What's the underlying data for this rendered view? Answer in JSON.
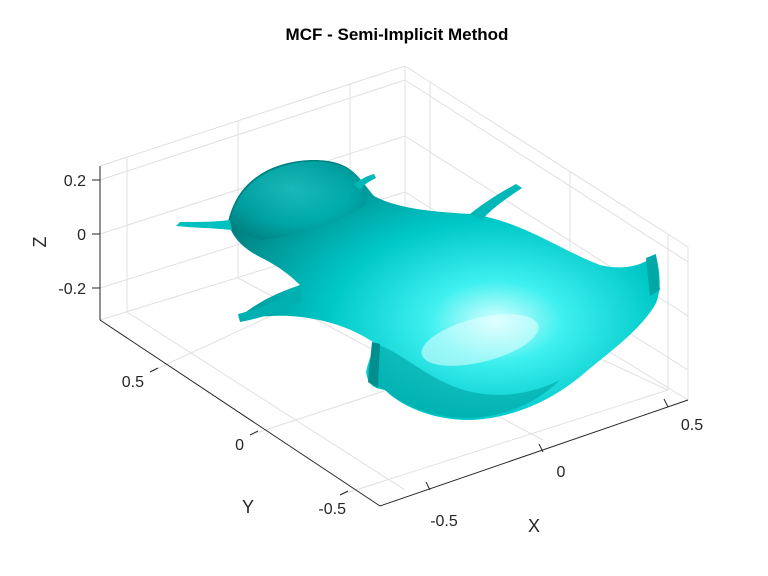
{
  "chart_data": {
    "type": "surface",
    "title": "MCF - Semi-Implicit Method",
    "xlabel": "X",
    "ylabel": "Y",
    "zlabel": "Z",
    "x_ticks": [
      "-0.5",
      "0",
      "0.5"
    ],
    "y_ticks": [
      "-0.5",
      "0",
      "0.5"
    ],
    "z_ticks": [
      "-0.2",
      "0",
      "0.2"
    ],
    "grid": true,
    "surface_color": "#00c8c8",
    "series": [
      {
        "surface": "smoothed mesh",
        "color": "#00c8c8"
      }
    ]
  },
  "colors": {
    "surface_light": "#b8ffff",
    "surface_mid": "#00d7d7",
    "surface_dark": "#008c8c",
    "grid": "#e0e0e0",
    "axis": "#262626"
  }
}
